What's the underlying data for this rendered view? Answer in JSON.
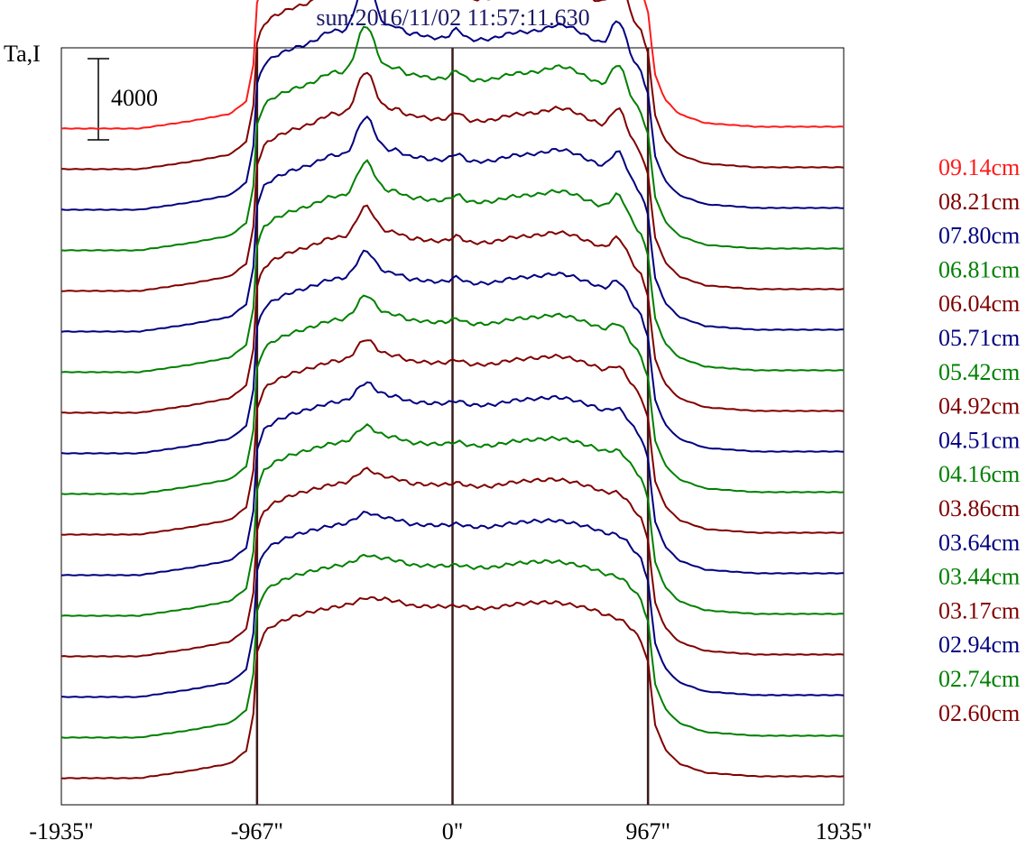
{
  "chart_data": {
    "type": "line",
    "title": "sun:2016/11/02 11:57:11.630",
    "ylabel": "Ta,I",
    "scale_bar_label": "4000",
    "x_tick_labels": [
      "-1935\"",
      "-967\"",
      "0\"",
      "967\"",
      "1935\""
    ],
    "x_ticks": [
      -1935,
      -967,
      0,
      967,
      1935
    ],
    "xlim": [
      -1935,
      1935
    ],
    "vertical_lines_at": [
      -967,
      0,
      967
    ],
    "grid": false,
    "legend_position": "right",
    "series": [
      {
        "name": "09.14cm",
        "color": "#ff1a1a",
        "offset": 0,
        "amp": 1.0
      },
      {
        "name": "08.21cm",
        "color": "#800000",
        "offset": 1,
        "amp": 0.86
      },
      {
        "name": "07.80cm",
        "color": "#00007f",
        "offset": 2,
        "amp": 0.78
      },
      {
        "name": "06.81cm",
        "color": "#008000",
        "offset": 3,
        "amp": 0.7
      },
      {
        "name": "06.04cm",
        "color": "#800000",
        "offset": 4,
        "amp": 0.62
      },
      {
        "name": "05.71cm",
        "color": "#00007f",
        "offset": 5,
        "amp": 0.55
      },
      {
        "name": "05.42cm",
        "color": "#008000",
        "offset": 6,
        "amp": 0.49
      },
      {
        "name": "04.92cm",
        "color": "#800000",
        "offset": 7,
        "amp": 0.43
      },
      {
        "name": "04.51cm",
        "color": "#00007f",
        "offset": 8,
        "amp": 0.37
      },
      {
        "name": "04.16cm",
        "color": "#008000",
        "offset": 9,
        "amp": 0.32
      },
      {
        "name": "03.86cm",
        "color": "#800000",
        "offset": 10,
        "amp": 0.27
      },
      {
        "name": "03.64cm",
        "color": "#00007f",
        "offset": 11,
        "amp": 0.23
      },
      {
        "name": "03.44cm",
        "color": "#008000",
        "offset": 12,
        "amp": 0.19
      },
      {
        "name": "03.17cm",
        "color": "#800000",
        "offset": 13,
        "amp": 0.15
      },
      {
        "name": "02.94cm",
        "color": "#00007f",
        "offset": 14,
        "amp": 0.11
      },
      {
        "name": "02.74cm",
        "color": "#008000",
        "offset": 15,
        "amp": 0.08
      },
      {
        "name": "02.60cm",
        "color": "#800000",
        "offset": 16,
        "amp": 0.05
      }
    ],
    "disk_temperature": 9000,
    "spacing": 2000,
    "base_level": 200,
    "shape_keypoints_x": [
      -1935,
      -1550,
      -1300,
      -1100,
      -1020,
      -980,
      -967,
      -930,
      -880,
      -800,
      -700,
      -600,
      -500,
      -420,
      -380,
      -340,
      -300,
      -250,
      -200,
      -120,
      0,
      40,
      100,
      200,
      300,
      400,
      500,
      560,
      620,
      700,
      780,
      820,
      860,
      890,
      930,
      967,
      1000,
      1050,
      1120,
      1250,
      1500,
      1935
    ],
    "shape_keypoints_v": [
      0.02,
      0.02,
      0.06,
      0.1,
      0.17,
      0.4,
      0.72,
      0.82,
      0.86,
      0.9,
      0.93,
      0.95,
      0.97,
      0.99,
      0.99,
      1.0,
      0.99,
      0.98,
      0.96,
      0.96,
      0.96,
      0.96,
      0.95,
      0.95,
      0.97,
      0.98,
      0.98,
      0.97,
      0.96,
      0.94,
      0.9,
      0.88,
      0.86,
      0.83,
      0.78,
      0.66,
      0.32,
      0.18,
      0.1,
      0.05,
      0.03,
      0.03
    ],
    "active_features": [
      {
        "x": -600,
        "w": 50,
        "h": 0.25
      },
      {
        "x": -430,
        "w": 45,
        "h": 1.5
      },
      {
        "x": -280,
        "w": 30,
        "h": 0.2
      },
      {
        "x": -180,
        "w": 35,
        "h": 0.12
      },
      {
        "x": 20,
        "w": 25,
        "h": 0.25
      },
      {
        "x": 300,
        "w": 70,
        "h": 0.1
      },
      {
        "x": 550,
        "w": 80,
        "h": 0.3
      },
      {
        "x": 820,
        "w": 35,
        "h": 0.9
      }
    ]
  }
}
